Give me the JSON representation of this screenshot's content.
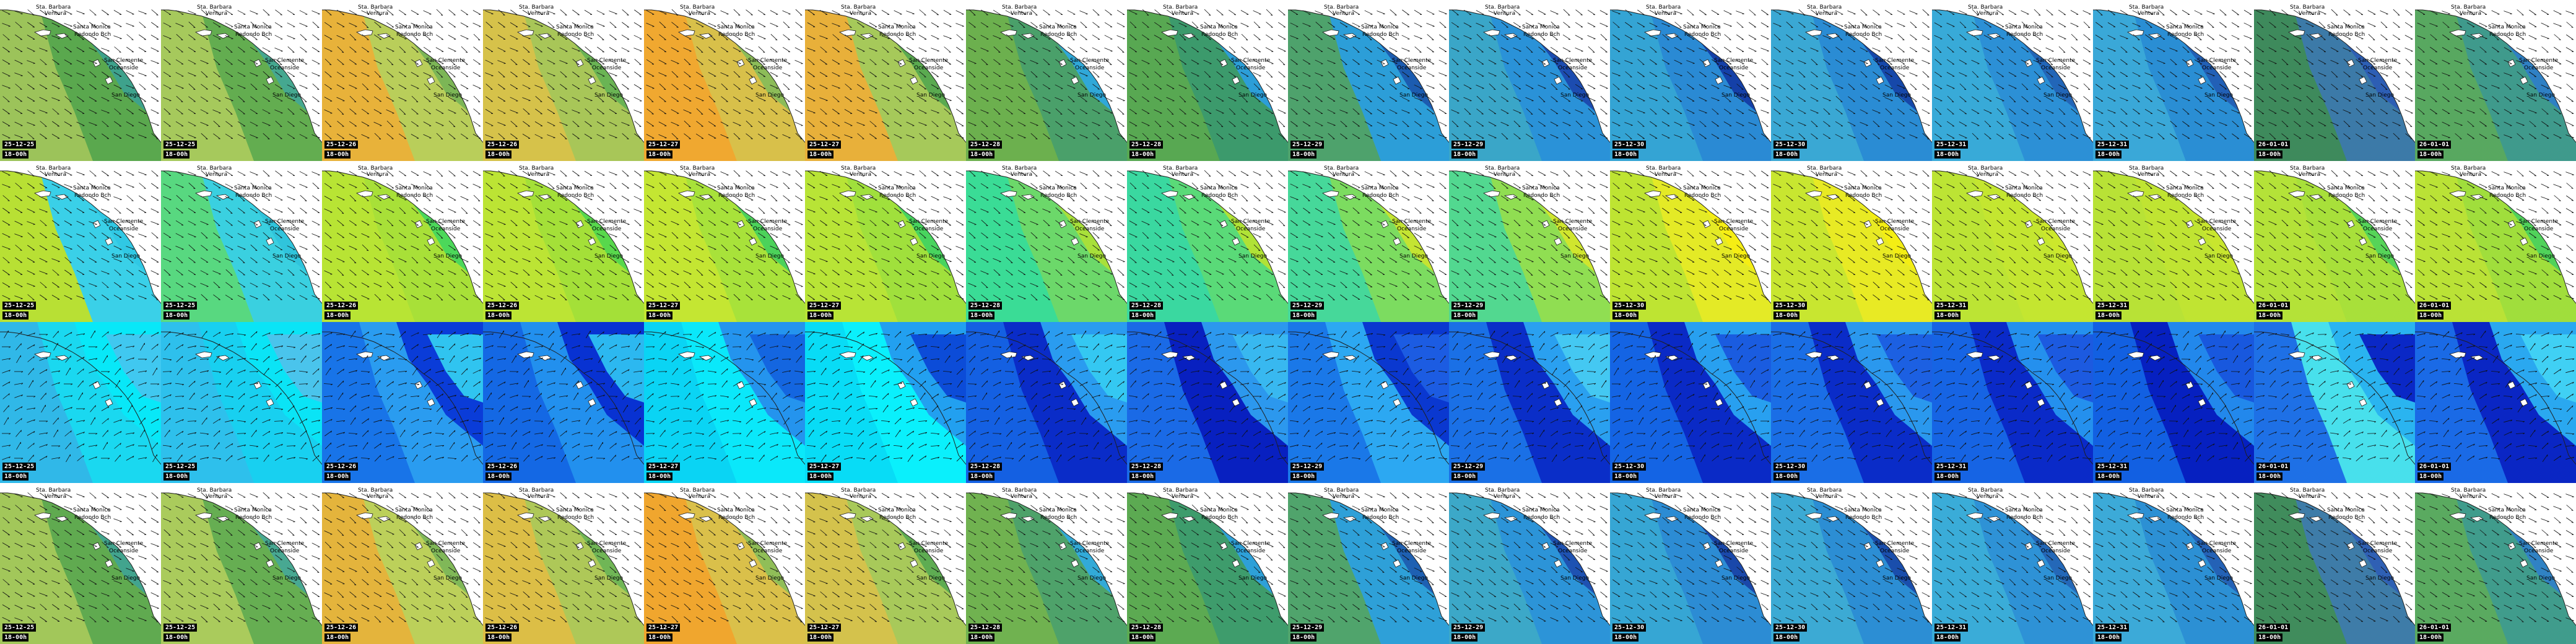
{
  "place_labels": {
    "santa_barbara": "Sta. Barbara",
    "ventura": "Ventura",
    "santa_monica": "Santa Monica",
    "redondo_beach": "Redondo Bch",
    "san_clemente": "San Clemente",
    "oceanside": "Oceanside",
    "san_diego": "San Diego"
  },
  "timestamps": [
    {
      "date": "25-12-25",
      "time": "18-00h"
    },
    {
      "date": "25-12-25",
      "time": "18-00h"
    },
    {
      "date": "25-12-26",
      "time": "18-00h"
    },
    {
      "date": "25-12-26",
      "time": "18-00h"
    },
    {
      "date": "25-12-27",
      "time": "18-00h"
    },
    {
      "date": "25-12-27",
      "time": "18-00h"
    },
    {
      "date": "25-12-28",
      "time": "18-00h"
    },
    {
      "date": "25-12-28",
      "time": "18-00h"
    },
    {
      "date": "25-12-29",
      "time": "18-00h"
    },
    {
      "date": "25-12-29",
      "time": "18-00h"
    },
    {
      "date": "25-12-30",
      "time": "18-00h"
    },
    {
      "date": "25-12-30",
      "time": "18-00h"
    },
    {
      "date": "25-12-31",
      "time": "18-00h"
    },
    {
      "date": "25-12-31",
      "time": "18-00h"
    },
    {
      "date": "26-01-01",
      "time": "18-00h"
    },
    {
      "date": "26-01-01",
      "time": "18-00h"
    }
  ],
  "rows": [
    {
      "name": "row-wave-height",
      "show_coast_labels": true,
      "tiles": [
        {
          "bg": "#9cc35a",
          "zones": [
            "#5aa84e",
            "#3ea28c",
            "#1e7ab8"
          ]
        },
        {
          "bg": "#a6c95c",
          "zones": [
            "#63ad50",
            "#45a890",
            "#2a82c0"
          ]
        },
        {
          "bg": "#e8b23a",
          "zones": [
            "#b9ce5a",
            "#7cb656",
            "#3a8fc8"
          ]
        },
        {
          "bg": "#d6c24a",
          "zones": [
            "#a8c658",
            "#6ab454",
            "#3a8fc8"
          ]
        },
        {
          "bg": "#f0a830",
          "zones": [
            "#d8c04a",
            "#8cbc58",
            "#40a0d0"
          ]
        },
        {
          "bg": "#e8b03a",
          "zones": [
            "#a6c95a",
            "#5aaa50",
            "#34a0d4"
          ]
        },
        {
          "bg": "#6cb04e",
          "zones": [
            "#4aa06a",
            "#30a8d8",
            "#1e7ab8"
          ]
        },
        {
          "bg": "#58a852",
          "zones": [
            "#3c9a6c",
            "#2c9ed8",
            "#2266b0"
          ]
        },
        {
          "bg": "#4ea26c",
          "zones": [
            "#2c9ed8",
            "#1c5cb0",
            "#0a1ca8"
          ]
        },
        {
          "bg": "#3aa6c8",
          "zones": [
            "#2a92d8",
            "#1c4cb0",
            "#0610a8"
          ]
        },
        {
          "bg": "#34a4d4",
          "zones": [
            "#2a8ad4",
            "#1440a8",
            "#0008a0"
          ]
        },
        {
          "bg": "#3aa8d4",
          "zones": [
            "#2a8cd4",
            "#1648aa",
            "#0612a8"
          ]
        },
        {
          "bg": "#38aad8",
          "zones": [
            "#2c90d6",
            "#2266b8",
            "#1c4eaa"
          ]
        },
        {
          "bg": "#3aa8d8",
          "zones": [
            "#2a8ed4",
            "#2260b6",
            "#1a4aa8"
          ]
        },
        {
          "bg": "#3e8a5c",
          "zones": [
            "#3c7aa8",
            "#2d5eb4",
            "#1e44a6"
          ]
        },
        {
          "bg": "#58a860",
          "zones": [
            "#3f9a8c",
            "#2f80c4",
            "#2458b0"
          ]
        }
      ]
    },
    {
      "name": "row-wave-period",
      "show_coast_labels": true,
      "tiles": [
        {
          "bg": "#b8e034",
          "zones": [
            "#3ad0e8",
            "#30c8e4",
            "#22b8dc"
          ]
        },
        {
          "bg": "#58d880",
          "zones": [
            "#3ad0e0",
            "#30c4dc",
            "#28b8d8"
          ]
        },
        {
          "bg": "#b8e434",
          "zones": [
            "#a8e038",
            "#4cd85a",
            "#20c84a"
          ]
        },
        {
          "bg": "#bce434",
          "zones": [
            "#a4e038",
            "#58d84c",
            "#1cc83e"
          ]
        },
        {
          "bg": "#c4e632",
          "zones": [
            "#a8e23a",
            "#4cd25a",
            "#22c44a"
          ]
        },
        {
          "bg": "#b8e436",
          "zones": [
            "#a0e03c",
            "#48d45e",
            "#20c64a"
          ]
        },
        {
          "bg": "#3adc96",
          "zones": [
            "#6cd86a",
            "#a8e03a",
            "#14e030"
          ]
        },
        {
          "bg": "#3ad8a0",
          "zones": [
            "#5ada78",
            "#b0e236",
            "#d2e82e"
          ]
        },
        {
          "bg": "#46d89a",
          "zones": [
            "#7cdc60",
            "#c4e432",
            "#e8ec24"
          ]
        },
        {
          "bg": "#52d890",
          "zones": [
            "#90de52",
            "#d0e62e",
            "#f2ee1c"
          ]
        },
        {
          "bg": "#bee432",
          "zones": [
            "#e4ea26",
            "#f6ee14",
            "#f8f00a"
          ]
        },
        {
          "bg": "#c8e630",
          "zones": [
            "#e8ea24",
            "#f4ee14",
            "#f6ec0c"
          ]
        },
        {
          "bg": "#bce434",
          "zones": [
            "#c4e630",
            "#cce82c",
            "#d4ea28"
          ]
        },
        {
          "bg": "#b8e236",
          "zones": [
            "#c0e432",
            "#c8e62e",
            "#d0e82a"
          ]
        },
        {
          "bg": "#b4e238",
          "zones": [
            "#a8e03a",
            "#56d458",
            "#20c84a"
          ]
        },
        {
          "bg": "#bae236",
          "zones": [
            "#a0de3c",
            "#50d25a",
            "#18c648"
          ]
        }
      ]
    },
    {
      "name": "row-wind",
      "show_coast_labels": false,
      "tiles": [
        {
          "bg": "#30b8e8",
          "zones": [
            "#1ad8f0",
            "#08e8f8",
            "#40c8f0"
          ]
        },
        {
          "bg": "#2ec0ec",
          "zones": [
            "#18d0f0",
            "#0ae4f6",
            "#4ac4ec"
          ]
        },
        {
          "bg": "#1874e8",
          "zones": [
            "#2a9cf0",
            "#0a3cd8",
            "#30c4f0"
          ]
        },
        {
          "bg": "#1468e4",
          "zones": [
            "#2290ee",
            "#0832d2",
            "#2cb8f0"
          ]
        },
        {
          "bg": "#0ad4f4",
          "zones": [
            "#0ae8fa",
            "#2494ee",
            "#1466e0"
          ]
        },
        {
          "bg": "#08dcf6",
          "zones": [
            "#0af0fc",
            "#22a0f0",
            "#0c4cd8"
          ]
        },
        {
          "bg": "#1460e2",
          "zones": [
            "#0a2cc8",
            "#2a9cf0",
            "#34c8f2"
          ]
        },
        {
          "bg": "#1a6ae6",
          "zones": [
            "#0820c0",
            "#2c98ee",
            "#38b8f0"
          ]
        },
        {
          "bg": "#1a78e8",
          "zones": [
            "#2ca8f2",
            "#0a38d0",
            "#1c5ce2"
          ]
        },
        {
          "bg": "#1a70e6",
          "zones": [
            "#0a2ec8",
            "#2aa0f0",
            "#44c8f2"
          ]
        },
        {
          "bg": "#1464e4",
          "zones": [
            "#0a2ac6",
            "#28a0f0",
            "#1a5ce0"
          ]
        },
        {
          "bg": "#1a6ee6",
          "zones": [
            "#0a2cc8",
            "#2a98ee",
            "#1c60e2"
          ]
        },
        {
          "bg": "#1664e4",
          "zones": [
            "#0a2ac8",
            "#2490ee",
            "#1c5ae0"
          ]
        },
        {
          "bg": "#1260e2",
          "zones": [
            "#0620c0",
            "#2288ec",
            "#1858de"
          ]
        },
        {
          "bg": "#1e70e6",
          "zones": [
            "#48e0ec",
            "#2ab4f0",
            "#0a28c6"
          ]
        },
        {
          "bg": "#1a6ae6",
          "zones": [
            "#0a26c4",
            "#2aa8f0",
            "#40d0f4"
          ]
        }
      ]
    },
    {
      "name": "row-swell",
      "show_coast_labels": true,
      "tiles": [
        {
          "bg": "#a2c75a",
          "zones": [
            "#60aa50",
            "#42a48e",
            "#2480bc"
          ]
        },
        {
          "bg": "#aacb5c",
          "zones": [
            "#66ae52",
            "#48a892",
            "#2a86c2"
          ]
        },
        {
          "bg": "#e4b43c",
          "zones": [
            "#bcd05a",
            "#80b858",
            "#3c92ca"
          ]
        },
        {
          "bg": "#dcbe46",
          "zones": [
            "#aec858",
            "#70b656",
            "#3c92ca"
          ]
        },
        {
          "bg": "#f0a62e",
          "zones": [
            "#dac04a",
            "#90be58",
            "#44a2d2"
          ]
        },
        {
          "bg": "#d4c24c",
          "zones": [
            "#a8c95a",
            "#5eac52",
            "#36a2d6"
          ]
        },
        {
          "bg": "#70b250",
          "zones": [
            "#4ea26a",
            "#32aad8",
            "#2080bc"
          ]
        },
        {
          "bg": "#5caa52",
          "zones": [
            "#3e9c6c",
            "#2ea0d8",
            "#2468b2"
          ]
        },
        {
          "bg": "#50a46c",
          "zones": [
            "#2ea0d8",
            "#1e60b2",
            "#1040aa"
          ]
        },
        {
          "bg": "#3ca8c8",
          "zones": [
            "#2c94d8",
            "#1e52b2",
            "#1038aa"
          ]
        },
        {
          "bg": "#36a6d4",
          "zones": [
            "#2c8cd4",
            "#1a48aa",
            "#1030a6"
          ]
        },
        {
          "bg": "#3caad4",
          "zones": [
            "#2c8ed4",
            "#1a4eac",
            "#1034a8"
          ]
        },
        {
          "bg": "#3aacd8",
          "zones": [
            "#2e92d6",
            "#2468b8",
            "#1e50aa"
          ]
        },
        {
          "bg": "#3caad8",
          "zones": [
            "#2c90d4",
            "#2462b6",
            "#1c4caa"
          ]
        },
        {
          "bg": "#408c5c",
          "zones": [
            "#3e7ca8",
            "#2f60b4",
            "#2046a6"
          ]
        },
        {
          "bg": "#5aaa60",
          "zones": [
            "#409c8c",
            "#3082c4",
            "#265ab0"
          ]
        }
      ]
    }
  ]
}
